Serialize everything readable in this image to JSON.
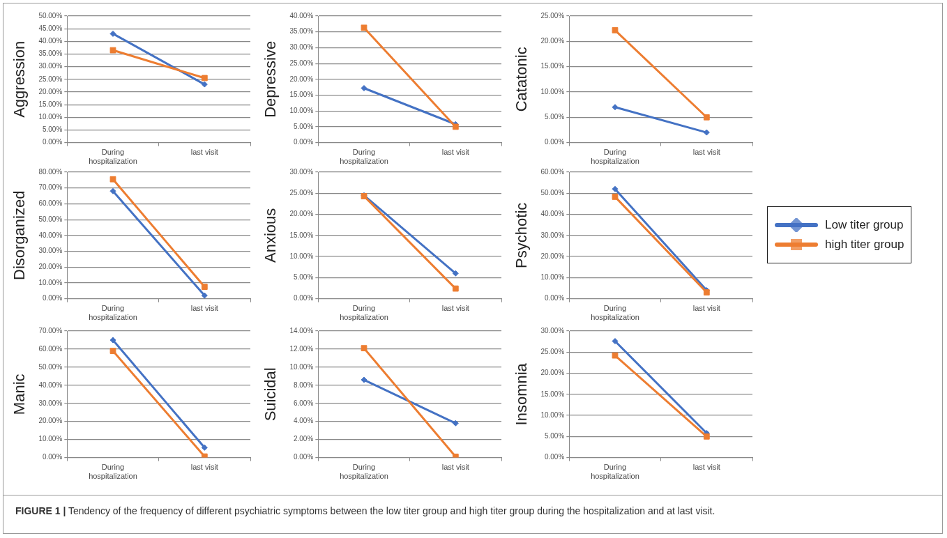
{
  "chart_data": [
    {
      "type": "line",
      "ylabel": "Aggression",
      "categories": [
        "During hospitalization",
        "last visit"
      ],
      "grid": "y",
      "ylim": [
        0,
        50
      ],
      "yticks": [
        {
          "value": 0,
          "label": "0.00%"
        },
        {
          "value": 5,
          "label": "5.00%"
        },
        {
          "value": 10,
          "label": "10.00%"
        },
        {
          "value": 15,
          "label": "15.00%"
        },
        {
          "value": 20,
          "label": "20.00%"
        },
        {
          "value": 25,
          "label": "25.00%"
        },
        {
          "value": 30,
          "label": "30.00%"
        },
        {
          "value": 35,
          "label": "35.00%"
        },
        {
          "value": 40,
          "label": "40.00%"
        },
        {
          "value": 45,
          "label": "45.00%"
        },
        {
          "value": 50,
          "label": "50.00%"
        }
      ],
      "series": [
        {
          "color": "#4472c4",
          "marker": "diamond",
          "values": [
            43,
            23
          ]
        },
        {
          "color": "#ed7d31",
          "marker": "square",
          "values": [
            36.5,
            25.5
          ]
        }
      ],
      "annotations": [
        "FIGURE 1 | Tendency of the frequency of different psychiatric symptoms between the low titer group and high titer group during the hospitalization and at last visit."
      ]
    },
    {
      "type": "line",
      "ylabel": "Depressive",
      "categories": [
        "During hospitalization",
        "last visit"
      ],
      "grid": "y",
      "ylim": [
        0,
        40
      ],
      "yticks": [
        {
          "value": 0,
          "label": "0.00%"
        },
        {
          "value": 5,
          "label": "5.00%"
        },
        {
          "value": 10,
          "label": "10.00%"
        },
        {
          "value": 15,
          "label": "15.00%"
        },
        {
          "value": 20,
          "label": "20.00%"
        },
        {
          "value": 25,
          "label": "25.00%"
        },
        {
          "value": 30,
          "label": "30.00%"
        },
        {
          "value": 35,
          "label": "35.00%"
        },
        {
          "value": 40,
          "label": "40.00%"
        }
      ],
      "series": [
        {
          "color": "#4472c4",
          "marker": "diamond",
          "values": [
            17.2,
            5.8
          ]
        },
        {
          "color": "#ed7d31",
          "marker": "square",
          "values": [
            36.3,
            5
          ]
        }
      ]
    },
    {
      "type": "line",
      "ylabel": "Catatonic",
      "categories": [
        "During hospitalization",
        "last visit"
      ],
      "grid": "y",
      "ylim": [
        0,
        25
      ],
      "yticks": [
        {
          "value": 0,
          "label": "0.00%"
        },
        {
          "value": 5,
          "label": "5.00%"
        },
        {
          "value": 10,
          "label": "10.00%"
        },
        {
          "value": 15,
          "label": "15.00%"
        },
        {
          "value": 20,
          "label": "20.00%"
        },
        {
          "value": 25,
          "label": "25.00%"
        }
      ],
      "series": [
        {
          "color": "#4472c4",
          "marker": "diamond",
          "values": [
            7,
            2
          ]
        },
        {
          "color": "#ed7d31",
          "marker": "square",
          "values": [
            22.2,
            5
          ]
        }
      ]
    },
    {
      "type": "line",
      "ylabel": "Disorganized",
      "categories": [
        "During hospitalization",
        "last visit"
      ],
      "grid": "y",
      "ylim": [
        0,
        80
      ],
      "yticks": [
        {
          "value": 0,
          "label": "0.00%"
        },
        {
          "value": 10,
          "label": "10.00%"
        },
        {
          "value": 20,
          "label": "20.00%"
        },
        {
          "value": 30,
          "label": "30.00%"
        },
        {
          "value": 40,
          "label": "40.00%"
        },
        {
          "value": 50,
          "label": "50.00%"
        },
        {
          "value": 60,
          "label": "60.00%"
        },
        {
          "value": 70,
          "label": "70.00%"
        },
        {
          "value": 80,
          "label": "80.00%"
        }
      ],
      "series": [
        {
          "color": "#4472c4",
          "marker": "diamond",
          "values": [
            68,
            2
          ]
        },
        {
          "color": "#ed7d31",
          "marker": "square",
          "values": [
            75.5,
            7.5
          ]
        }
      ]
    },
    {
      "type": "line",
      "ylabel": "Anxious",
      "categories": [
        "During hospitalization",
        "last visit"
      ],
      "grid": "y",
      "ylim": [
        0,
        30
      ],
      "yticks": [
        {
          "value": 0,
          "label": "0.00%"
        },
        {
          "value": 5,
          "label": "5.00%"
        },
        {
          "value": 10,
          "label": "10.00%"
        },
        {
          "value": 15,
          "label": "15.00%"
        },
        {
          "value": 20,
          "label": "20.00%"
        },
        {
          "value": 25,
          "label": "25.00%"
        },
        {
          "value": 30,
          "label": "30.00%"
        }
      ],
      "series": [
        {
          "color": "#4472c4",
          "marker": "diamond",
          "values": [
            24.5,
            6
          ]
        },
        {
          "color": "#ed7d31",
          "marker": "square",
          "values": [
            24.3,
            2.4
          ]
        }
      ]
    },
    {
      "type": "line",
      "ylabel": "Psychotic",
      "categories": [
        "During hospitalization",
        "last visit"
      ],
      "grid": "y",
      "legend": "right",
      "ylim": [
        0,
        60
      ],
      "yticks": [
        {
          "value": 0,
          "label": "0.00%"
        },
        {
          "value": 10,
          "label": "10.00%"
        },
        {
          "value": 20,
          "label": "20.00%"
        },
        {
          "value": 30,
          "label": "30.00%"
        },
        {
          "value": 40,
          "label": "40.00%"
        },
        {
          "value": 50,
          "label": "50.00%"
        },
        {
          "value": 60,
          "label": "60.00%"
        }
      ],
      "series": [
        {
          "name": "Low titer group",
          "color": "#4472c4",
          "marker": "diamond",
          "values": [
            52,
            4
          ]
        },
        {
          "name": "high titer group",
          "color": "#ed7d31",
          "marker": "square",
          "values": [
            48.3,
            3
          ]
        }
      ]
    },
    {
      "type": "line",
      "ylabel": "Manic",
      "categories": [
        "During hospitalization",
        "last visit"
      ],
      "grid": "y",
      "ylim": [
        0,
        70
      ],
      "yticks": [
        {
          "value": 0,
          "label": "0.00%"
        },
        {
          "value": 10,
          "label": "10.00%"
        },
        {
          "value": 20,
          "label": "20.00%"
        },
        {
          "value": 30,
          "label": "30.00%"
        },
        {
          "value": 40,
          "label": "40.00%"
        },
        {
          "value": 50,
          "label": "50.00%"
        },
        {
          "value": 60,
          "label": "60.00%"
        },
        {
          "value": 70,
          "label": "70.00%"
        }
      ],
      "series": [
        {
          "color": "#4472c4",
          "marker": "diamond",
          "values": [
            65,
            5.5
          ]
        },
        {
          "color": "#ed7d31",
          "marker": "square",
          "values": [
            59,
            0.6
          ]
        }
      ]
    },
    {
      "type": "line",
      "ylabel": "Suicidal",
      "categories": [
        "During hospitalization",
        "last visit"
      ],
      "grid": "y",
      "ylim": [
        0,
        14
      ],
      "yticks": [
        {
          "value": 0,
          "label": "0.00%"
        },
        {
          "value": 2,
          "label": "2.00%"
        },
        {
          "value": 4,
          "label": "4.00%"
        },
        {
          "value": 6,
          "label": "6.00%"
        },
        {
          "value": 8,
          "label": "8.00%"
        },
        {
          "value": 10,
          "label": "10.00%"
        },
        {
          "value": 12,
          "label": "12.00%"
        },
        {
          "value": 14,
          "label": "14.00%"
        }
      ],
      "series": [
        {
          "color": "#4472c4",
          "marker": "diamond",
          "values": [
            8.6,
            3.8
          ]
        },
        {
          "color": "#ed7d31",
          "marker": "square",
          "values": [
            12.1,
            0.1
          ]
        }
      ]
    },
    {
      "type": "line",
      "ylabel": "Insomnia",
      "categories": [
        "During hospitalization",
        "last visit"
      ],
      "grid": "y",
      "ylim": [
        0,
        30
      ],
      "yticks": [
        {
          "value": 0,
          "label": "0.00%"
        },
        {
          "value": 5,
          "label": "5.00%"
        },
        {
          "value": 10,
          "label": "10.00%"
        },
        {
          "value": 15,
          "label": "15.00%"
        },
        {
          "value": 20,
          "label": "20.00%"
        },
        {
          "value": 25,
          "label": "25.00%"
        },
        {
          "value": 30,
          "label": "30.00%"
        }
      ],
      "series": [
        {
          "color": "#4472c4",
          "marker": "diamond",
          "values": [
            27.6,
            5.8
          ]
        },
        {
          "color": "#ed7d31",
          "marker": "square",
          "values": [
            24.2,
            5
          ]
        }
      ]
    }
  ]
}
